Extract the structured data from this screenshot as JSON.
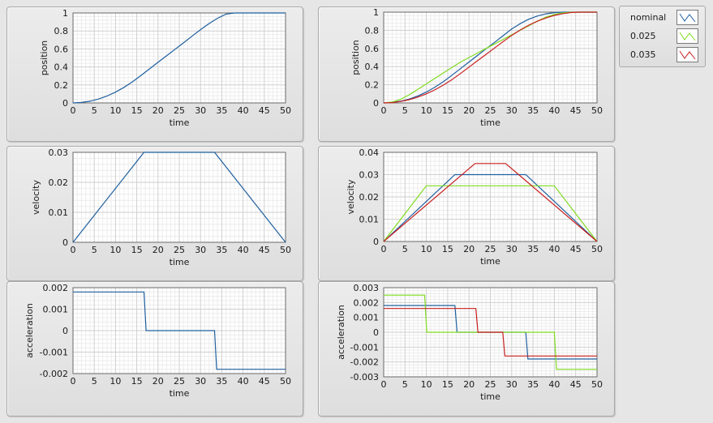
{
  "legend": {
    "items": [
      {
        "name": "nominal",
        "color": "#1f5f9f"
      },
      {
        "name": "0.025",
        "color": "#7fdc1f"
      },
      {
        "name": "0.035",
        "color": "#c81e1e"
      }
    ]
  },
  "chart_data": [
    {
      "type": "line",
      "xlabel": "time",
      "ylabel": "position",
      "xlim": [
        0,
        50
      ],
      "ylim": [
        0,
        1
      ],
      "xticks": [
        "0",
        "5",
        "10",
        "15",
        "20",
        "25",
        "30",
        "35",
        "40",
        "45",
        "50"
      ],
      "yticks": [
        "0",
        "0.2",
        "0.4",
        "0.6",
        "0.8",
        "1"
      ],
      "grid": true,
      "series": [
        {
          "color": "#1f5f9f",
          "x": [
            0,
            2,
            4,
            6,
            8,
            10,
            12,
            14,
            16,
            18,
            20,
            22,
            24,
            26,
            28,
            30,
            32,
            34,
            36,
            38,
            40,
            42,
            44,
            46,
            48,
            50
          ],
          "y": [
            0,
            0.005,
            0.019,
            0.043,
            0.077,
            0.12,
            0.173,
            0.235,
            0.305,
            0.378,
            0.451,
            0.523,
            0.596,
            0.668,
            0.741,
            0.814,
            0.882,
            0.941,
            0.987,
            1.0,
            1.0,
            1.0,
            1.0,
            1.0,
            1.0,
            1.0
          ]
        }
      ]
    },
    {
      "type": "line",
      "xlabel": "time",
      "ylabel": "position",
      "xlim": [
        0,
        50
      ],
      "ylim": [
        0,
        1
      ],
      "xticks": [
        "0",
        "5",
        "10",
        "15",
        "20",
        "25",
        "30",
        "35",
        "40",
        "45",
        "50"
      ],
      "yticks": [
        "0",
        "0.2",
        "0.4",
        "0.6",
        "0.8",
        "1"
      ],
      "grid": true,
      "series": [
        {
          "name": "nominal",
          "color": "#1f5f9f",
          "x": [
            0,
            2,
            4,
            6,
            8,
            10,
            12,
            14,
            16,
            18,
            20,
            22,
            24,
            26,
            28,
            30,
            32,
            34,
            36,
            38,
            40,
            42,
            44,
            46,
            48,
            50
          ],
          "y": [
            0,
            0.005,
            0.019,
            0.043,
            0.077,
            0.12,
            0.173,
            0.235,
            0.305,
            0.378,
            0.451,
            0.523,
            0.596,
            0.668,
            0.741,
            0.814,
            0.873,
            0.922,
            0.957,
            0.981,
            0.995,
            1.0,
            1.0,
            1.0,
            1.0,
            1.0
          ]
        },
        {
          "name": "0.025",
          "color": "#7fdc1f",
          "x": [
            0,
            2,
            4,
            6,
            8,
            10,
            12,
            14,
            16,
            18,
            20,
            22,
            24,
            26,
            28,
            30,
            32,
            34,
            36,
            38,
            40,
            42,
            44,
            46,
            48,
            50
          ],
          "y": [
            0,
            0.01,
            0.04,
            0.09,
            0.15,
            0.21,
            0.27,
            0.33,
            0.39,
            0.45,
            0.5,
            0.55,
            0.6,
            0.65,
            0.7,
            0.75,
            0.8,
            0.85,
            0.9,
            0.945,
            0.975,
            0.992,
            0.999,
            1.0,
            1.0,
            1.0
          ]
        },
        {
          "name": "0.035",
          "color": "#c81e1e",
          "x": [
            0,
            2,
            4,
            6,
            8,
            10,
            12,
            14,
            16,
            18,
            20,
            22,
            24,
            26,
            28,
            30,
            32,
            34,
            36,
            38,
            40,
            42,
            44,
            46,
            48,
            50
          ],
          "y": [
            0,
            0.004,
            0.016,
            0.036,
            0.064,
            0.1,
            0.144,
            0.196,
            0.256,
            0.324,
            0.395,
            0.465,
            0.535,
            0.605,
            0.676,
            0.744,
            0.804,
            0.856,
            0.9,
            0.936,
            0.964,
            0.984,
            0.996,
            1.0,
            1.0,
            1.0
          ]
        }
      ]
    },
    {
      "type": "line",
      "xlabel": "time",
      "ylabel": "velocity",
      "xlim": [
        0,
        50
      ],
      "ylim": [
        0,
        0.03
      ],
      "xticks": [
        "0",
        "5",
        "10",
        "15",
        "20",
        "25",
        "30",
        "35",
        "40",
        "45",
        "50"
      ],
      "yticks": [
        "0",
        "0.01",
        "0.02",
        "0.03"
      ],
      "grid": true,
      "series": [
        {
          "color": "#1f5f9f",
          "x": [
            0,
            16.7,
            33.3,
            50
          ],
          "y": [
            0,
            0.03,
            0.03,
            0
          ]
        }
      ]
    },
    {
      "type": "line",
      "xlabel": "time",
      "ylabel": "velocity",
      "xlim": [
        0,
        50
      ],
      "ylim": [
        0,
        0.04
      ],
      "xticks": [
        "0",
        "5",
        "10",
        "15",
        "20",
        "25",
        "30",
        "35",
        "40",
        "45",
        "50"
      ],
      "yticks": [
        "0",
        "0.01",
        "0.02",
        "0.03",
        "0.04"
      ],
      "grid": true,
      "series": [
        {
          "name": "nominal",
          "color": "#1f5f9f",
          "x": [
            0,
            16.7,
            33.3,
            50
          ],
          "y": [
            0,
            0.03,
            0.03,
            0
          ]
        },
        {
          "name": "0.025",
          "color": "#7fdc1f",
          "x": [
            0,
            10,
            40,
            50
          ],
          "y": [
            0,
            0.025,
            0.025,
            0
          ]
        },
        {
          "name": "0.035",
          "color": "#c81e1e",
          "x": [
            0,
            21.4,
            28.6,
            50
          ],
          "y": [
            0,
            0.035,
            0.035,
            0
          ]
        }
      ]
    },
    {
      "type": "line",
      "xlabel": "time",
      "ylabel": "acceleration",
      "xlim": [
        0,
        50
      ],
      "ylim": [
        -0.002,
        0.002
      ],
      "xticks": [
        "0",
        "5",
        "10",
        "15",
        "20",
        "25",
        "30",
        "35",
        "40",
        "45",
        "50"
      ],
      "yticks": [
        "-0.002",
        "-0.001",
        "0",
        "0.001",
        "0.002"
      ],
      "grid": true,
      "series": [
        {
          "color": "#1f5f9f",
          "x": [
            0,
            16.7,
            17.2,
            33.3,
            33.8,
            50
          ],
          "y": [
            0.0018,
            0.0018,
            0,
            0,
            -0.0018,
            -0.0018
          ]
        }
      ]
    },
    {
      "type": "line",
      "xlabel": "time",
      "ylabel": "acceleration",
      "xlim": [
        0,
        50
      ],
      "ylim": [
        -0.003,
        0.003
      ],
      "xticks": [
        "0",
        "5",
        "10",
        "15",
        "20",
        "25",
        "30",
        "35",
        "40",
        "45",
        "50"
      ],
      "yticks": [
        "-0.003",
        "-0.002",
        "-0.001",
        "0",
        "0.001",
        "0.002",
        "0.003"
      ],
      "grid": true,
      "series": [
        {
          "name": "nominal",
          "color": "#1f5f9f",
          "x": [
            0,
            16.7,
            17.2,
            33.3,
            33.8,
            50
          ],
          "y": [
            0.0018,
            0.0018,
            0,
            0,
            -0.0018,
            -0.0018
          ]
        },
        {
          "name": "0.025",
          "color": "#7fdc1f",
          "x": [
            0,
            9.6,
            10.1,
            40,
            40.5,
            50
          ],
          "y": [
            0.0025,
            0.0025,
            0,
            0,
            -0.0025,
            -0.0025
          ]
        },
        {
          "name": "0.035",
          "color": "#c81e1e",
          "x": [
            0,
            21.6,
            22.1,
            27.9,
            28.4,
            50
          ],
          "y": [
            0.0016,
            0.0016,
            0,
            0,
            -0.0016,
            -0.0016
          ]
        }
      ]
    }
  ]
}
